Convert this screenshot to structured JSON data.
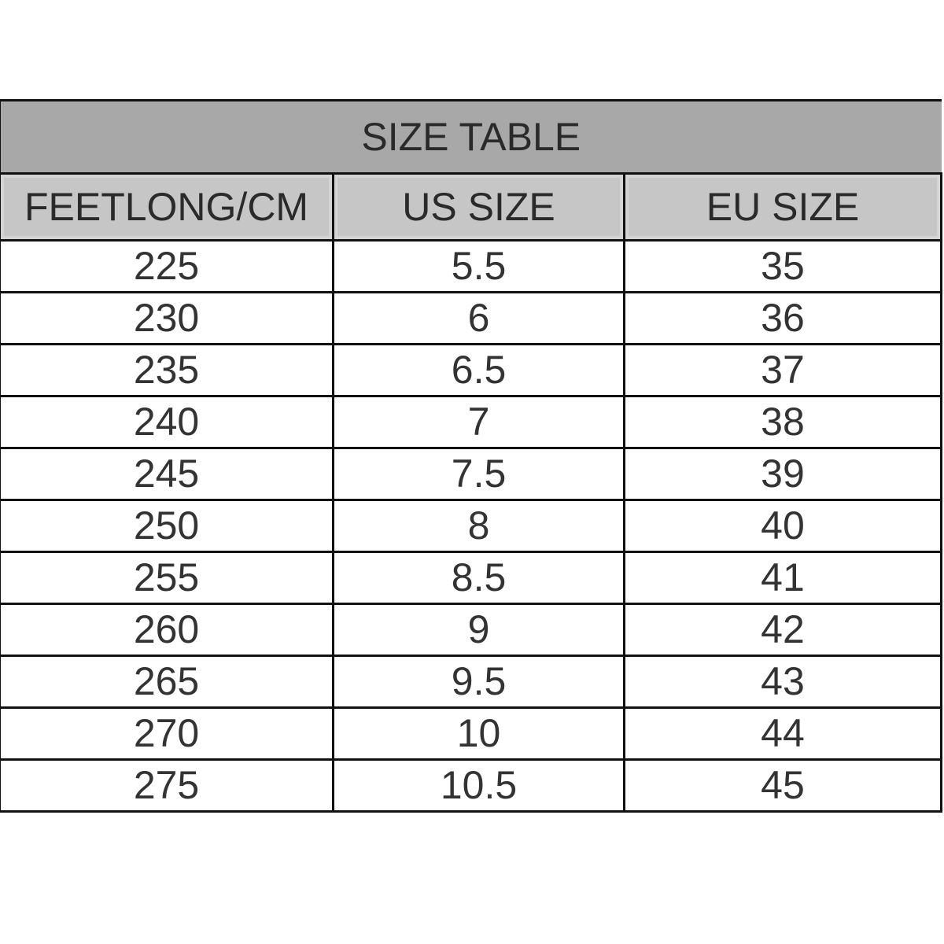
{
  "title": "SIZE TABLE",
  "columns": [
    "FEETLONG/CM",
    "US SIZE",
    "EU SIZE"
  ],
  "rows": [
    [
      "225",
      "5.5",
      "35"
    ],
    [
      "230",
      "6",
      "36"
    ],
    [
      "235",
      "6.5",
      "37"
    ],
    [
      "240",
      "7",
      "38"
    ],
    [
      "245",
      "7.5",
      "39"
    ],
    [
      "250",
      "8",
      "40"
    ],
    [
      "255",
      "8.5",
      "41"
    ],
    [
      "260",
      "9",
      "42"
    ],
    [
      "265",
      "9.5",
      "43"
    ],
    [
      "270",
      "10",
      "44"
    ],
    [
      "275",
      "10.5",
      "45"
    ]
  ],
  "colors": {
    "title_bg": "#a8a8a8",
    "header_bg": "#c6c6c6",
    "border": "#111111"
  }
}
